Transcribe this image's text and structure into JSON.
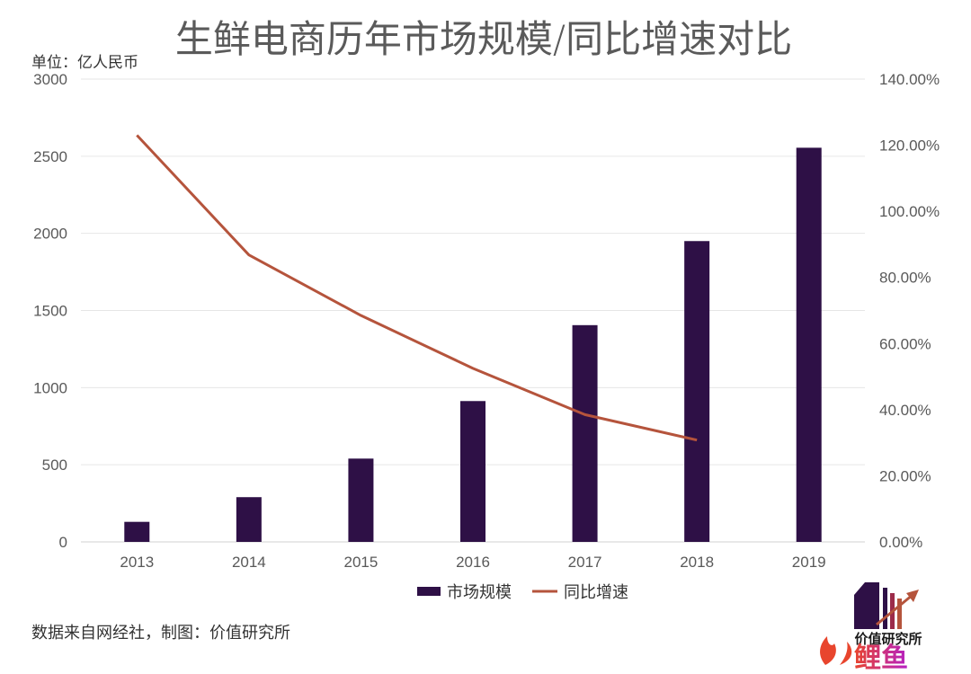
{
  "chart_data": {
    "type": "bar",
    "title": "生鲜电商历年市场规模/同比增速对比",
    "unit_label": "单位：亿人民币",
    "categories": [
      "2013",
      "2014",
      "2015",
      "2016",
      "2017",
      "2018",
      "2019"
    ],
    "series": [
      {
        "name": "市场规模",
        "type": "bar",
        "axis": "left",
        "color": "#2e1046",
        "values": [
          130,
          290,
          540,
          913,
          1405,
          1950,
          2555
        ]
      },
      {
        "name": "同比增速",
        "type": "line",
        "axis": "right",
        "color": "#b5543c",
        "values": [
          123.0,
          86.8,
          68.5,
          52.5,
          38.5,
          30.8,
          null
        ]
      }
    ],
    "y_left": {
      "range": [
        0,
        3000
      ],
      "ticks": [
        "0",
        "500",
        "1000",
        "1500",
        "2000",
        "2500",
        "3000"
      ]
    },
    "y_right": {
      "range": [
        0,
        140
      ],
      "ticks": [
        "0.00%",
        "20.00%",
        "40.00%",
        "60.00%",
        "80.00%",
        "100.00%",
        "120.00%",
        "140.00%"
      ]
    },
    "grid": true,
    "legend_position": "bottom"
  },
  "source": "数据来自网经社，制图：价值研究所",
  "logo": {
    "name": "价值研究所",
    "icon": "bars-rising-arrow-icon"
  },
  "watermark": {
    "text": "鲤鱼",
    "icon": "flame-icon",
    "colors": [
      "#e8452d",
      "#b51fc4"
    ]
  }
}
